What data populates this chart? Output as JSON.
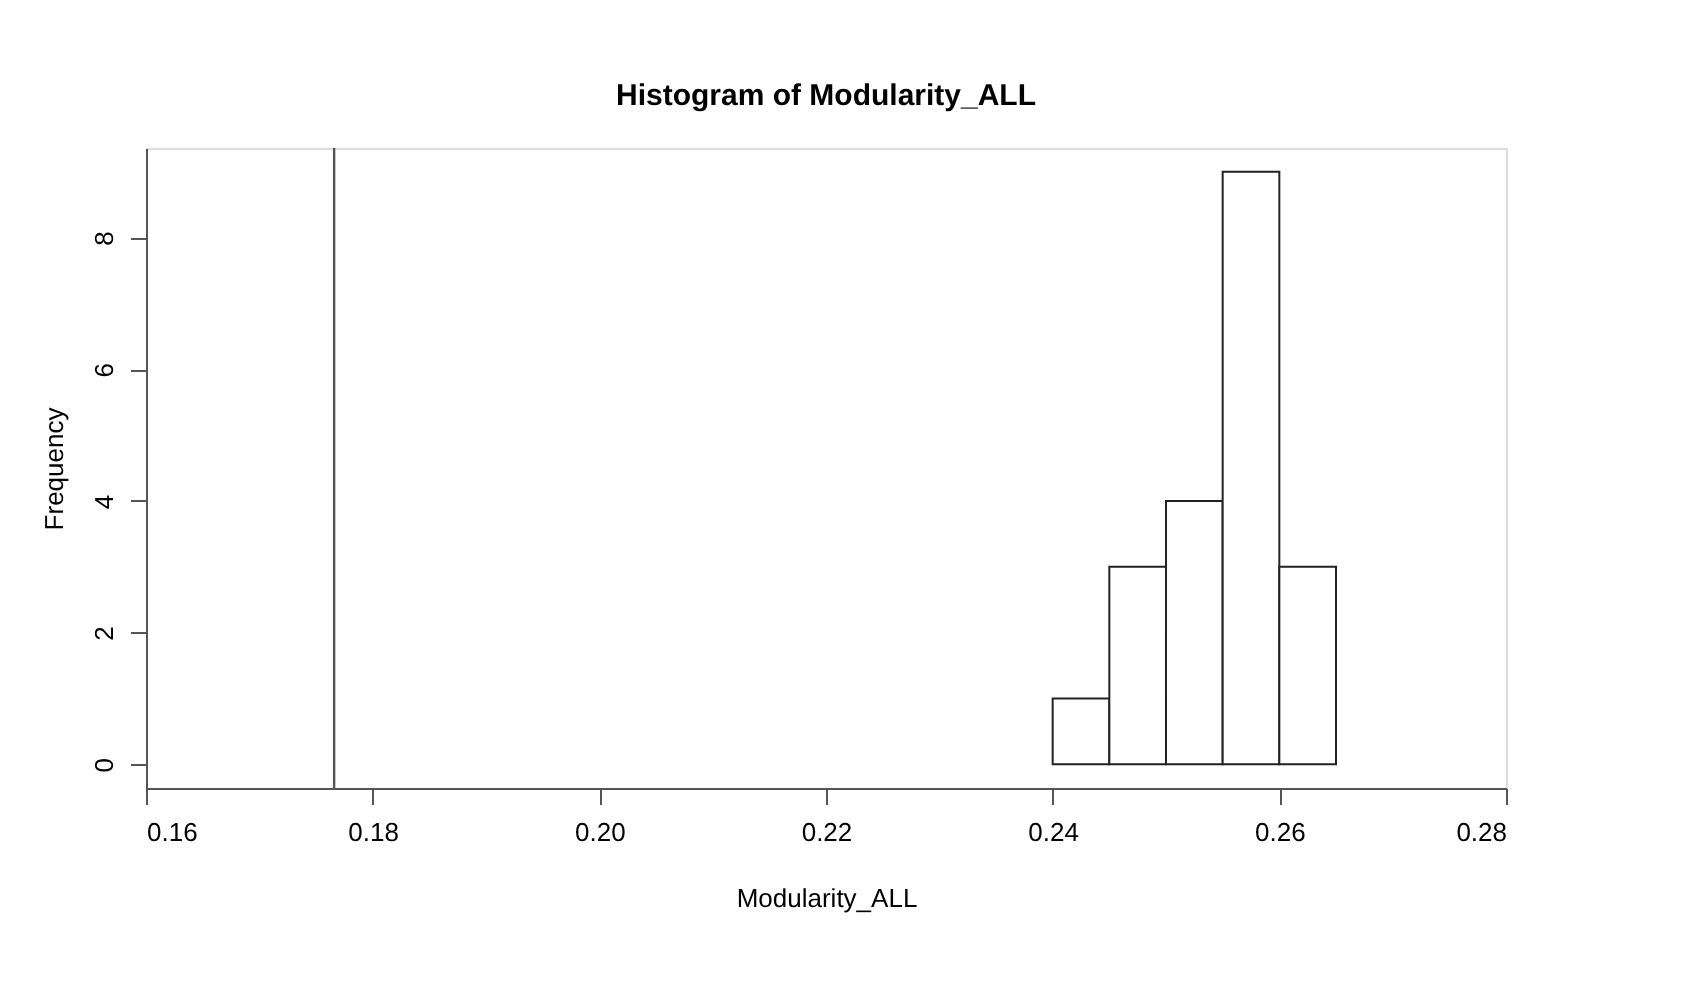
{
  "chart_data": {
    "type": "histogram",
    "title": "Histogram of Modularity_ALL",
    "xlabel": "Modularity_ALL",
    "ylabel": "Frequency",
    "bins": [
      0.24,
      0.245,
      0.25,
      0.255,
      0.26,
      0.265
    ],
    "values": [
      1,
      3,
      4,
      9,
      3
    ],
    "color": "#ffffff",
    "xlim": [
      0.16,
      0.28
    ],
    "xticks": [
      {
        "value": 0.16,
        "label": "0.16"
      },
      {
        "value": 0.18,
        "label": "0.18"
      },
      {
        "value": 0.2,
        "label": "0.20"
      },
      {
        "value": 0.22,
        "label": "0.22"
      },
      {
        "value": 0.24,
        "label": "0.24"
      },
      {
        "value": 0.26,
        "label": "0.26"
      },
      {
        "value": 0.28,
        "label": "0.28"
      }
    ],
    "ylim": [
      -0.36,
      9.36
    ],
    "yticks": [
      0,
      2,
      4,
      6,
      8
    ],
    "ref_lines": [
      {
        "axis": "x",
        "value": 0.1766,
        "label": null,
        "color": "#555555"
      }
    ],
    "grid": false
  }
}
